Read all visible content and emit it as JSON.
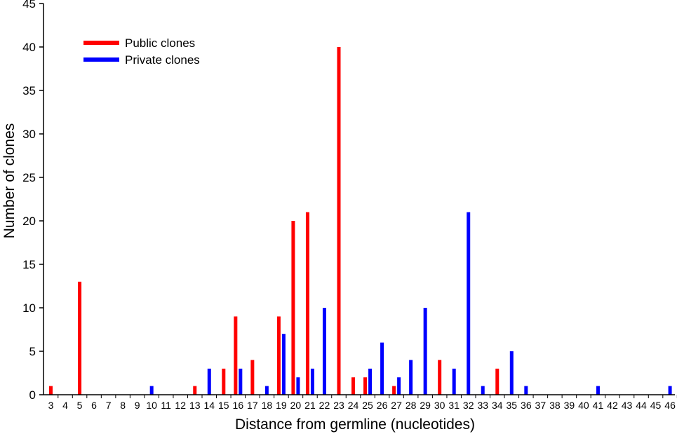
{
  "chart_data": {
    "type": "bar",
    "xlabel": "Distance from germline (nucleotides)",
    "ylabel": "Number of clones",
    "ylim": [
      0,
      45
    ],
    "yticks": [
      "0",
      "5",
      "10",
      "15",
      "20",
      "25",
      "30",
      "35",
      "40",
      "45"
    ],
    "categories": [
      "3",
      "4",
      "5",
      "6",
      "7",
      "8",
      "9",
      "10",
      "11",
      "12",
      "13",
      "14",
      "15",
      "16",
      "17",
      "18",
      "19",
      "20",
      "21",
      "22",
      "23",
      "24",
      "25",
      "26",
      "27",
      "28",
      "29",
      "30",
      "31",
      "32",
      "33",
      "34",
      "35",
      "36",
      "37",
      "38",
      "39",
      "40",
      "41",
      "42",
      "43",
      "44",
      "45",
      "46"
    ],
    "series": [
      {
        "name": "Public clones",
        "color": "#ff0000",
        "values": [
          1,
          0,
          13,
          0,
          0,
          0,
          0,
          0,
          0,
          0,
          1,
          0,
          3,
          9,
          4,
          0,
          9,
          20,
          21,
          0,
          40,
          2,
          2,
          0,
          1,
          0,
          0,
          4,
          0,
          0,
          0,
          3,
          0,
          0,
          0,
          0,
          0,
          0,
          0,
          0,
          0,
          0,
          0,
          0
        ]
      },
      {
        "name": "Private clones",
        "color": "#0000ff",
        "values": [
          0,
          0,
          0,
          0,
          0,
          0,
          0,
          1,
          0,
          0,
          0,
          3,
          0,
          3,
          0,
          1,
          7,
          2,
          3,
          10,
          0,
          0,
          3,
          6,
          2,
          4,
          10,
          0,
          3,
          21,
          1,
          0,
          5,
          1,
          0,
          0,
          0,
          0,
          1,
          0,
          0,
          0,
          0,
          1
        ]
      }
    ],
    "legend": {
      "position": "top-left"
    },
    "grid": false
  }
}
